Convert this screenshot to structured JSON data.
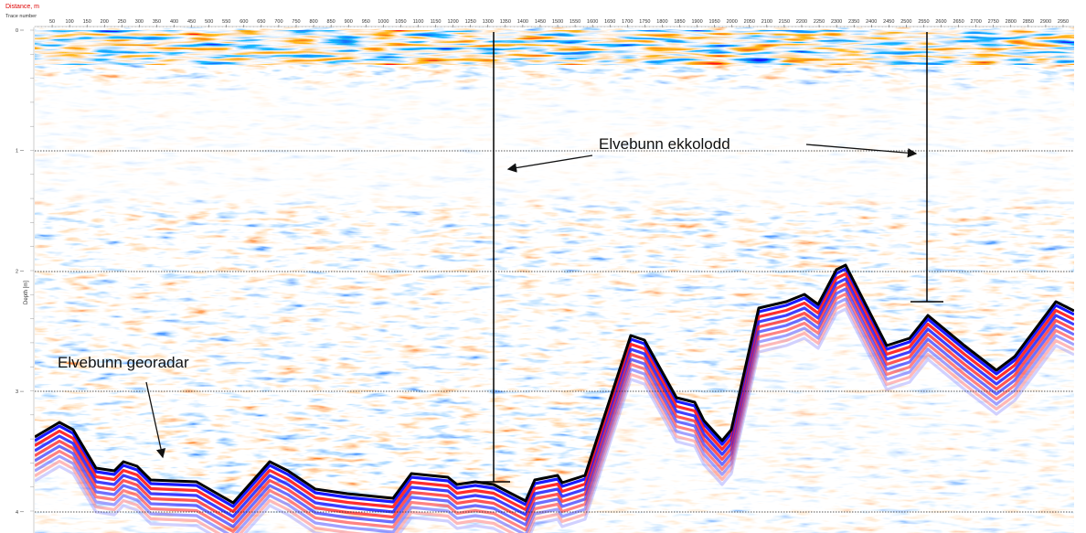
{
  "header": {
    "distance_label": "Distance, m",
    "trace_label": "Trace number"
  },
  "axis": {
    "traces": [
      50,
      100,
      150,
      200,
      250,
      300,
      350,
      400,
      450,
      500,
      550,
      600,
      650,
      700,
      750,
      800,
      850,
      900,
      950,
      1000,
      1050,
      1100,
      1150,
      1200,
      1250,
      1300,
      1350,
      1400,
      1450,
      1500,
      1550,
      1600,
      1650,
      1700,
      1750,
      1800,
      1850,
      1900,
      1950,
      2000,
      2050,
      2100,
      2150,
      2200,
      2250,
      2300,
      2350,
      2400,
      2450,
      2500,
      2550,
      2600,
      2650,
      2700,
      2750,
      2800,
      2850,
      2900,
      2950
    ],
    "depth_label": "Depth [m]",
    "depths": [
      "0",
      "1",
      "2",
      "3",
      "4"
    ]
  },
  "annotations": {
    "echo": "Elvebunn ekkolodd",
    "gpr": "Elvebunn georadar"
  }
}
